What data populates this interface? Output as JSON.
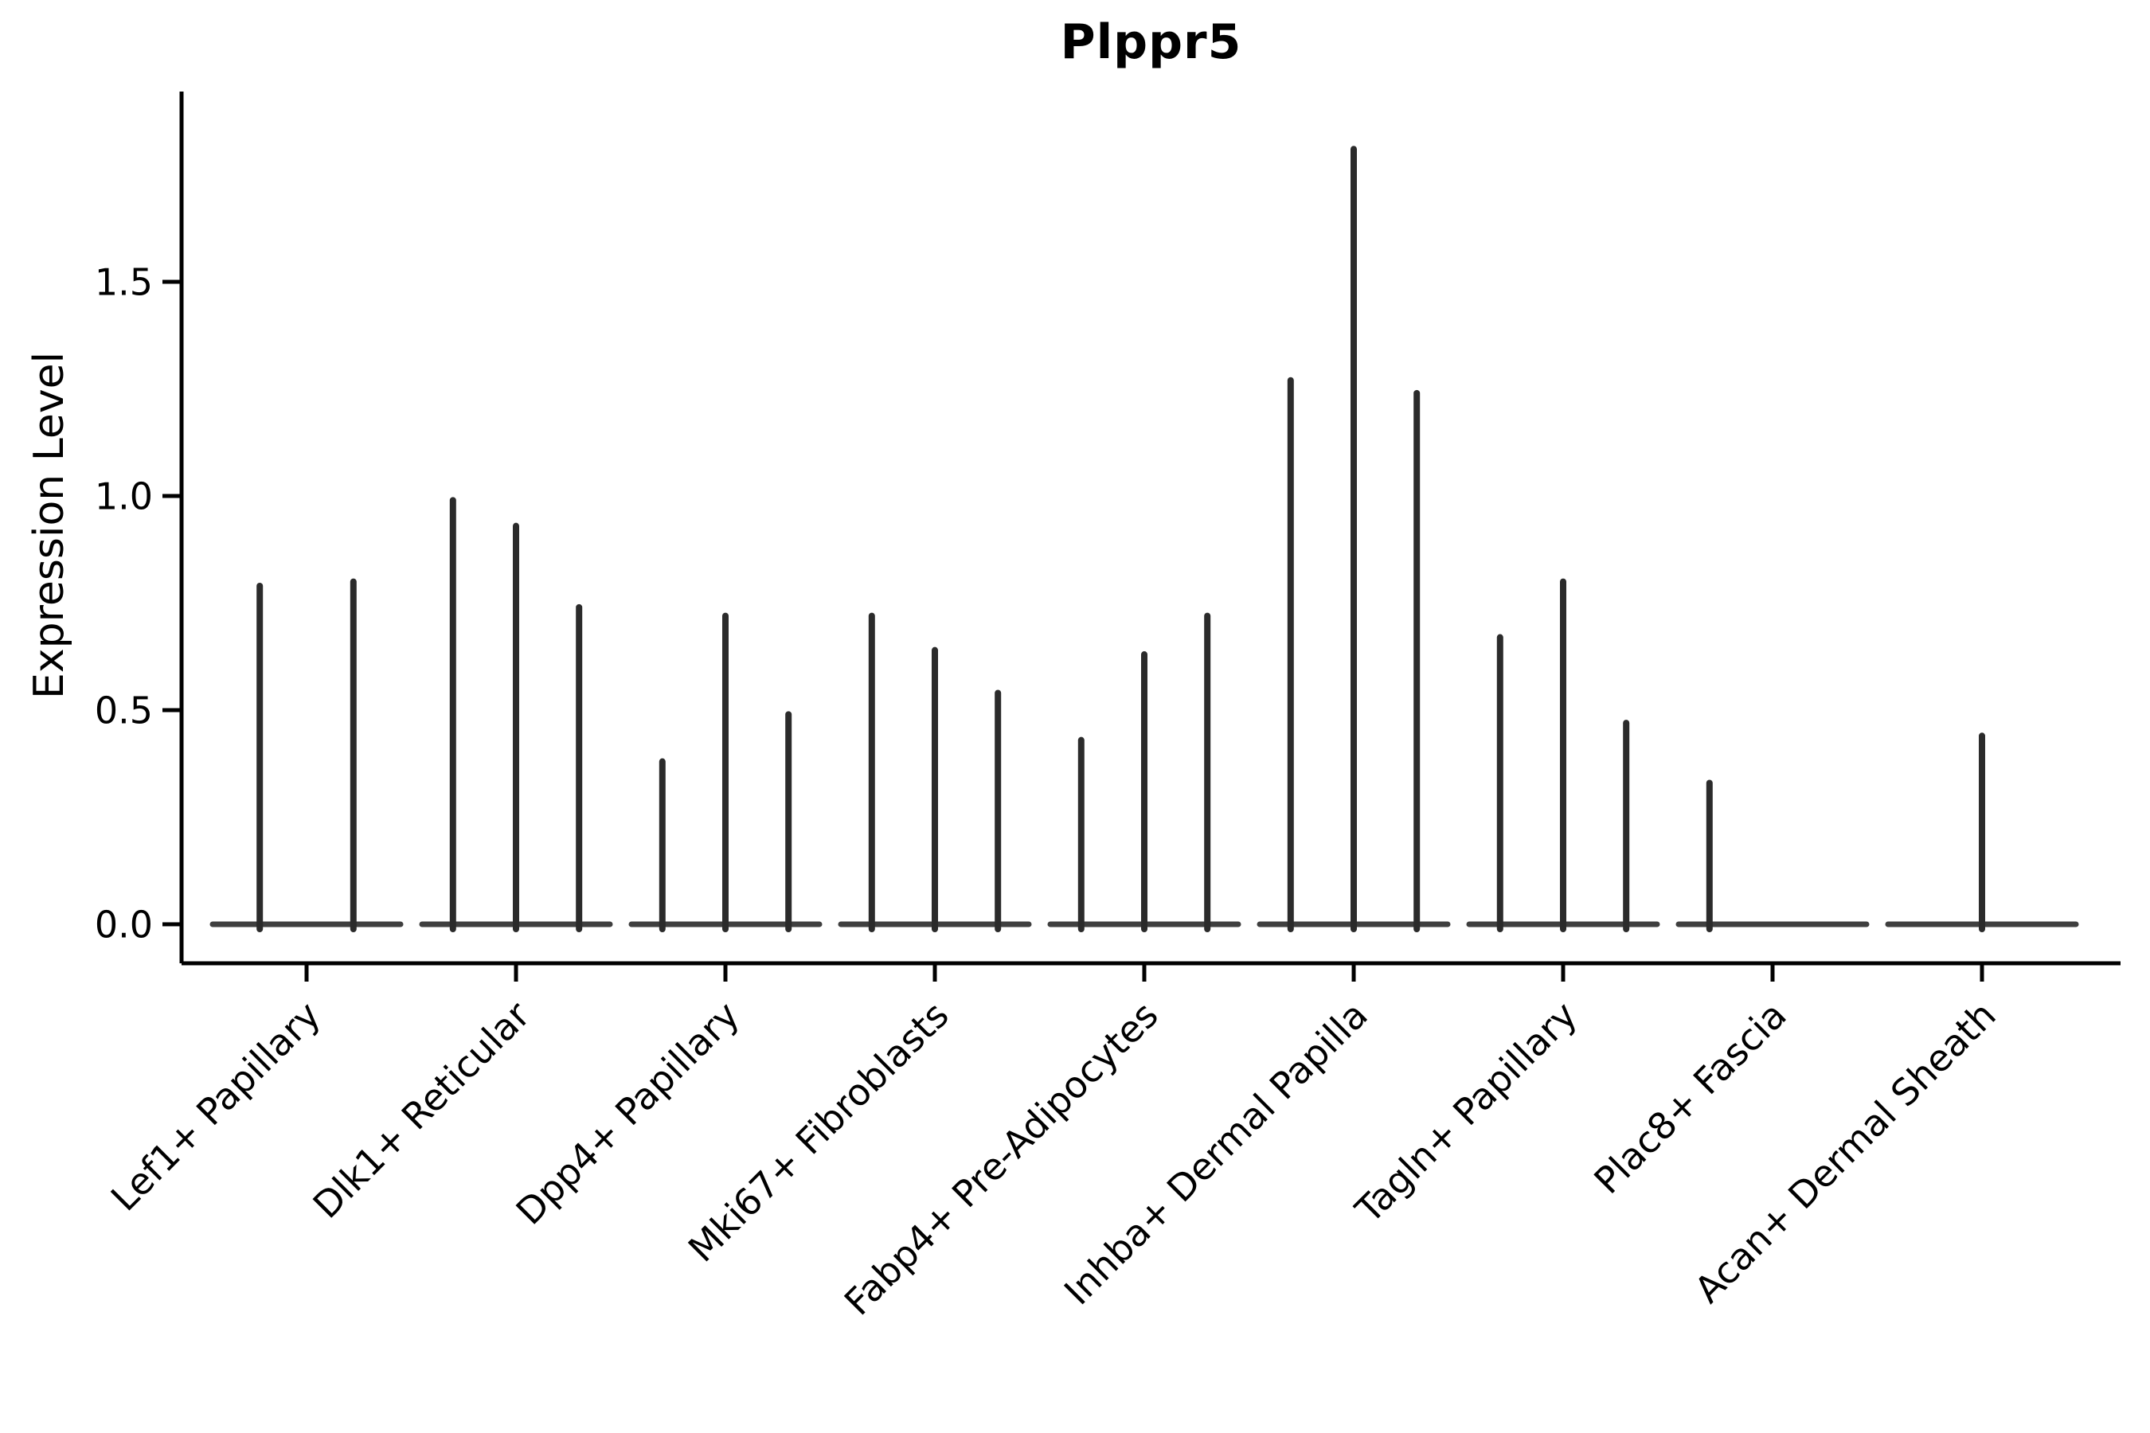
{
  "chart_data": {
    "type": "violin",
    "title": "Plppr5",
    "xlabel": "",
    "ylabel": "Expression Level",
    "yticks": [
      0.0,
      0.5,
      1.0,
      1.5
    ],
    "ytick_labels": [
      "0.0",
      "0.5",
      "1.0",
      "1.5"
    ],
    "ylim": [
      -0.09,
      1.94
    ],
    "grid": false,
    "legend": "none",
    "colors": {
      "axis": "#000000",
      "spike": "#2b2b2b",
      "baseline": "#3f3f3f",
      "text": "#000000",
      "background": "#ffffff"
    },
    "categories": [
      "Lef1+ Papillary",
      "Dlk1+ Reticular",
      "Dpp4+ Papillary",
      "Mki67+ Fibroblasts",
      "Fabp4+ Pre-Adipocytes",
      "Inhba+ Dermal Papilla",
      "Tagln+ Papillary",
      "Plac8+ Fascia",
      "Acan+ Dermal Sheath"
    ],
    "groups": [
      {
        "label": "Lef1+ Papillary",
        "violins": [
          {
            "pos": -0.49,
            "max": 0.79
          },
          {
            "pos": 0.49,
            "max": 0.8
          }
        ]
      },
      {
        "label": "Dlk1+ Reticular",
        "violins": [
          {
            "pos": -0.66,
            "max": 0.99
          },
          {
            "pos": 0,
            "max": 0.93
          },
          {
            "pos": 0.66,
            "max": 0.74
          }
        ]
      },
      {
        "label": "Dpp4+ Papillary",
        "violins": [
          {
            "pos": -0.66,
            "max": 0.38
          },
          {
            "pos": 0,
            "max": 0.72
          },
          {
            "pos": 0.66,
            "max": 0.49
          }
        ]
      },
      {
        "label": "Mki67+ Fibroblasts",
        "violins": [
          {
            "pos": -0.66,
            "max": 0.72
          },
          {
            "pos": 0,
            "max": 0.64
          },
          {
            "pos": 0.66,
            "max": 0.54
          }
        ]
      },
      {
        "label": "Fabp4+ Pre-Adipocytes",
        "violins": [
          {
            "pos": -0.66,
            "max": 0.43
          },
          {
            "pos": 0,
            "max": 0.63
          },
          {
            "pos": 0.66,
            "max": 0.72
          }
        ]
      },
      {
        "label": "Inhba+ Dermal Papilla",
        "violins": [
          {
            "pos": -0.66,
            "max": 1.27
          },
          {
            "pos": 0,
            "max": 1.81
          },
          {
            "pos": 0.66,
            "max": 1.24
          }
        ]
      },
      {
        "label": "Tagln+ Papillary",
        "violins": [
          {
            "pos": -0.66,
            "max": 0.67
          },
          {
            "pos": 0,
            "max": 0.8
          },
          {
            "pos": 0.66,
            "max": 0.47
          }
        ]
      },
      {
        "label": "Plac8+ Fascia",
        "violins": [
          {
            "pos": -0.66,
            "max": 0.33
          },
          {
            "pos": 0,
            "max": 0.0
          },
          {
            "pos": 0.66,
            "max": 0.0
          }
        ]
      },
      {
        "label": "Acan+ Dermal Sheath",
        "violins": [
          {
            "pos": -0.66,
            "max": 0.0
          },
          {
            "pos": 0,
            "max": 0.44
          },
          {
            "pos": 0.66,
            "max": 0.0
          }
        ]
      }
    ]
  }
}
